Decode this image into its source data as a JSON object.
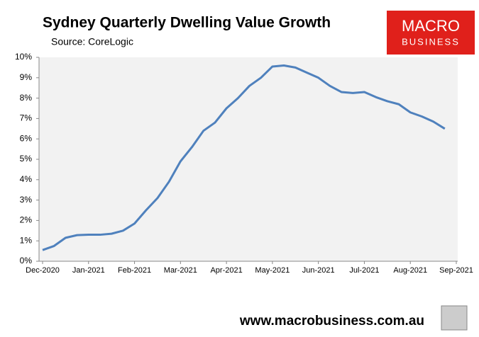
{
  "chart_data": {
    "type": "line",
    "title": "Sydney Quarterly Dwelling Value Growth",
    "subtitle": "Source: CoreLogic",
    "categories": [
      "Dec-2020",
      null,
      null,
      null,
      "Jan-2021",
      null,
      null,
      null,
      "Feb-2021",
      null,
      null,
      null,
      "Mar-2021",
      null,
      null,
      null,
      "Apr-2021",
      null,
      null,
      null,
      "May-2021",
      null,
      null,
      null,
      "Jun-2021",
      null,
      null,
      null,
      "Jul-2021",
      null,
      null,
      null,
      "Aug-2021",
      null,
      null,
      null,
      "Sep-2021"
    ],
    "series": [
      {
        "name": "Sydney",
        "color": "#4f81bd",
        "values": [
          0.55,
          0.75,
          1.15,
          1.28,
          1.3,
          1.3,
          1.35,
          1.5,
          1.85,
          2.5,
          3.1,
          3.9,
          4.9,
          5.6,
          6.4,
          6.8,
          7.5,
          8.0,
          8.6,
          9.0,
          9.55,
          9.6,
          9.5,
          9.25,
          9.0,
          8.6,
          8.3,
          8.25,
          8.3,
          8.05,
          7.85,
          7.7,
          7.3,
          7.1,
          6.85,
          6.5,
          null
        ]
      }
    ],
    "ylim": [
      0,
      10
    ],
    "yticks": [
      {
        "value": 0,
        "label": "0%"
      },
      {
        "value": 1,
        "label": "1%"
      },
      {
        "value": 2,
        "label": "2%"
      },
      {
        "value": 3,
        "label": "3%"
      },
      {
        "value": 4,
        "label": "4%"
      },
      {
        "value": 5,
        "label": "5%"
      },
      {
        "value": 6,
        "label": "6%"
      },
      {
        "value": 7,
        "label": "7%"
      },
      {
        "value": 8,
        "label": "8%"
      },
      {
        "value": 9,
        "label": "9%"
      },
      {
        "value": 10,
        "label": "10%"
      }
    ],
    "grid": false
  },
  "logo": {
    "line1": "MACRO",
    "line2": "BUSINESS"
  },
  "footer": "www.macrobusiness.com.au"
}
